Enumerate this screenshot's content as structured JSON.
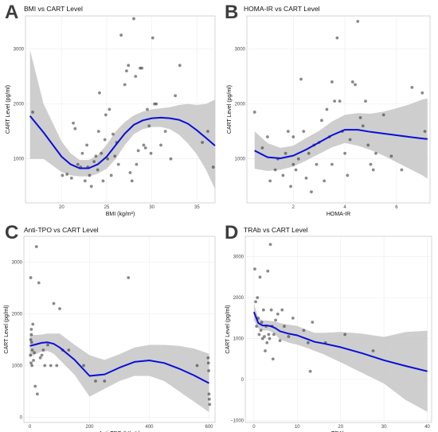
{
  "colors": {
    "line": "#0a0fd8",
    "ribbon": "#c6c6c6",
    "point": "#2a2a2a",
    "grid": "#ececec",
    "panel_border": "#b8b8b8"
  },
  "chart_data": [
    {
      "type": "scatter",
      "letter": "A",
      "title": "BMI vs CART Level",
      "xlabel": "BMI (kg/m²)",
      "ylabel": "CART Level (pg/ml)",
      "xlim": [
        16,
        37
      ],
      "ylim": [
        200,
        3600
      ],
      "x_ticks": [
        20,
        25,
        30,
        35
      ],
      "x_tick_labels": [
        "20",
        "25",
        "30",
        "35"
      ],
      "y_ticks": [
        1000,
        2000,
        3000
      ],
      "y_tick_labels": [
        "1000",
        "2000",
        "3000"
      ],
      "grid": true,
      "points": [
        [
          16.8,
          1850
        ],
        [
          20.1,
          700
        ],
        [
          20.6,
          720
        ],
        [
          21.1,
          650
        ],
        [
          21.3,
          1650
        ],
        [
          21.5,
          1550
        ],
        [
          21.8,
          900
        ],
        [
          22.1,
          850
        ],
        [
          22.3,
          1100
        ],
        [
          22.6,
          600
        ],
        [
          22.8,
          1250
        ],
        [
          22.9,
          850
        ],
        [
          23.1,
          700
        ],
        [
          23.3,
          500
        ],
        [
          23.6,
          950
        ],
        [
          23.8,
          1050
        ],
        [
          24.0,
          800
        ],
        [
          24.1,
          1500
        ],
        [
          24.2,
          2200
        ],
        [
          24.4,
          1100
        ],
        [
          24.6,
          600
        ],
        [
          24.8,
          1350
        ],
        [
          24.9,
          1800
        ],
        [
          25.1,
          1000
        ],
        [
          25.3,
          1900
        ],
        [
          25.5,
          700
        ],
        [
          25.7,
          1450
        ],
        [
          25.9,
          1050
        ],
        [
          26.1,
          1300
        ],
        [
          26.3,
          900
        ],
        [
          26.6,
          3250
        ],
        [
          27.0,
          2350
        ],
        [
          27.2,
          2600
        ],
        [
          27.4,
          2700
        ],
        [
          27.6,
          750
        ],
        [
          27.8,
          600
        ],
        [
          28.0,
          3550
        ],
        [
          28.2,
          2500
        ],
        [
          28.3,
          900
        ],
        [
          28.5,
          1150
        ],
        [
          28.7,
          2650
        ],
        [
          28.9,
          2650
        ],
        [
          29.1,
          1250
        ],
        [
          29.3,
          1200
        ],
        [
          29.5,
          1900
        ],
        [
          29.7,
          1600
        ],
        [
          29.9,
          1100
        ],
        [
          30.1,
          3200
        ],
        [
          30.3,
          2000
        ],
        [
          30.5,
          2000
        ],
        [
          31.0,
          1250
        ],
        [
          31.5,
          1500
        ],
        [
          32.1,
          1000
        ],
        [
          32.6,
          2150
        ],
        [
          33.1,
          2700
        ],
        [
          35.6,
          1300
        ],
        [
          36.2,
          1500
        ],
        [
          36.8,
          850
        ]
      ],
      "fit_x": [
        16.5,
        18,
        20,
        21,
        22,
        23,
        24,
        25,
        26,
        27,
        28,
        29,
        30,
        31,
        32,
        33,
        34,
        35,
        36,
        37
      ],
      "fit_y": [
        1780,
        1480,
        1040,
        900,
        830,
        830,
        900,
        1040,
        1250,
        1460,
        1620,
        1700,
        1740,
        1750,
        1740,
        1710,
        1640,
        1520,
        1380,
        1240
      ],
      "ci_low": [
        1000,
        1000,
        760,
        700,
        680,
        680,
        730,
        820,
        1000,
        1250,
        1450,
        1540,
        1580,
        1580,
        1540,
        1440,
        1280,
        1080,
        800,
        450
      ],
      "ci_high": [
        2980,
        2000,
        1320,
        1100,
        980,
        980,
        1070,
        1260,
        1500,
        1670,
        1790,
        1860,
        1900,
        1920,
        1940,
        1980,
        2000,
        1980,
        2000,
        2080
      ]
    },
    {
      "type": "scatter",
      "letter": "B",
      "title": "HOMA-IR vs CART Level",
      "xlabel": "HOMA-IR",
      "ylabel": "CART Level (pg/ml)",
      "xlim": [
        0.2,
        7.3
      ],
      "ylim": [
        200,
        3600
      ],
      "x_ticks": [
        2,
        4,
        6
      ],
      "x_tick_labels": [
        "2",
        "4",
        "6"
      ],
      "y_ticks": [
        1000,
        2000,
        3000
      ],
      "y_tick_labels": [
        "1000",
        "2000",
        "3000"
      ],
      "grid": true,
      "points": [
        [
          0.5,
          1850
        ],
        [
          0.8,
          1200
        ],
        [
          1.0,
          1400
        ],
        [
          1.1,
          600
        ],
        [
          1.3,
          800
        ],
        [
          1.4,
          1000
        ],
        [
          1.6,
          700
        ],
        [
          1.7,
          1100
        ],
        [
          1.8,
          1500
        ],
        [
          1.9,
          500
        ],
        [
          2.0,
          900
        ],
        [
          2.0,
          1400
        ],
        [
          2.1,
          800
        ],
        [
          2.2,
          1000
        ],
        [
          2.3,
          2450
        ],
        [
          2.4,
          1500
        ],
        [
          2.5,
          650
        ],
        [
          2.6,
          1100
        ],
        [
          2.7,
          400
        ],
        [
          2.8,
          1250
        ],
        [
          2.9,
          900
        ],
        [
          3.0,
          1300
        ],
        [
          3.1,
          1700
        ],
        [
          3.2,
          600
        ],
        [
          3.3,
          1900
        ],
        [
          3.4,
          1400
        ],
        [
          3.5,
          2400
        ],
        [
          3.5,
          900
        ],
        [
          3.6,
          2050
        ],
        [
          3.7,
          3200
        ],
        [
          3.8,
          2050
        ],
        [
          3.9,
          1500
        ],
        [
          4.0,
          1100
        ],
        [
          4.1,
          700
        ],
        [
          4.2,
          1350
        ],
        [
          4.3,
          2400
        ],
        [
          4.4,
          2350
        ],
        [
          4.5,
          3500
        ],
        [
          4.6,
          1750
        ],
        [
          4.7,
          1600
        ],
        [
          4.8,
          2050
        ],
        [
          4.9,
          1250
        ],
        [
          5.0,
          900
        ],
        [
          5.1,
          800
        ],
        [
          5.2,
          1100
        ],
        [
          5.5,
          1800
        ],
        [
          5.8,
          1050
        ],
        [
          6.2,
          800
        ],
        [
          6.6,
          2300
        ],
        [
          7.0,
          2200
        ],
        [
          7.1,
          1500
        ]
      ],
      "fit_x": [
        0.5,
        1,
        1.5,
        2,
        2.5,
        3,
        3.5,
        4,
        4.5,
        5,
        5.5,
        6,
        6.5,
        7,
        7.2
      ],
      "fit_y": [
        1150,
        1030,
        1010,
        1060,
        1170,
        1300,
        1430,
        1530,
        1530,
        1490,
        1460,
        1430,
        1400,
        1370,
        1360
      ],
      "ci_low": [
        820,
        780,
        800,
        860,
        970,
        1090,
        1210,
        1290,
        1240,
        1160,
        1060,
        940,
        820,
        700,
        640
      ],
      "ci_high": [
        1500,
        1290,
        1200,
        1240,
        1380,
        1510,
        1680,
        1800,
        1830,
        1820,
        1860,
        1920,
        1990,
        2080,
        2100
      ]
    },
    {
      "type": "scatter",
      "letter": "C",
      "title": "Anti-TPO vs CART Level",
      "xlabel": "Anti-TPO (U/mL)",
      "ylabel": "CART Level (pg/ml)",
      "xlim": [
        -20,
        620
      ],
      "ylim": [
        -100,
        3500
      ],
      "x_ticks": [
        0,
        200,
        400,
        600
      ],
      "x_tick_labels": [
        "0",
        "200",
        "400",
        "600"
      ],
      "y_ticks": [
        0,
        1000,
        2000,
        3000
      ],
      "y_tick_labels": [
        "0",
        "1000",
        "2000",
        "3000"
      ],
      "grid": true,
      "points": [
        [
          2,
          1200
        ],
        [
          3,
          1500
        ],
        [
          3,
          2700
        ],
        [
          4,
          1050
        ],
        [
          5,
          1600
        ],
        [
          5,
          1700
        ],
        [
          6,
          1450
        ],
        [
          7,
          1000
        ],
        [
          8,
          1300
        ],
        [
          10,
          1800
        ],
        [
          12,
          1100
        ],
        [
          15,
          1250
        ],
        [
          18,
          600
        ],
        [
          22,
          3300
        ],
        [
          25,
          450
        ],
        [
          30,
          2600
        ],
        [
          35,
          1150
        ],
        [
          40,
          1200
        ],
        [
          45,
          1300
        ],
        [
          50,
          1000
        ],
        [
          60,
          1400
        ],
        [
          70,
          1000
        ],
        [
          80,
          2200
        ],
        [
          90,
          1000
        ],
        [
          100,
          2100
        ],
        [
          110,
          1300
        ],
        [
          130,
          1300
        ],
        [
          180,
          1000
        ],
        [
          220,
          700
        ],
        [
          250,
          700
        ],
        [
          330,
          2700
        ],
        [
          560,
          1000
        ],
        [
          597,
          1150
        ],
        [
          598,
          1050
        ],
        [
          599,
          900
        ],
        [
          600,
          450
        ],
        [
          601,
          350
        ],
        [
          602,
          250
        ]
      ],
      "fit_x": [
        0,
        20,
        40,
        60,
        80,
        100,
        150,
        200,
        250,
        300,
        350,
        400,
        450,
        500,
        550,
        600
      ],
      "fit_y": [
        1380,
        1410,
        1440,
        1450,
        1420,
        1350,
        1110,
        800,
        830,
        960,
        1070,
        1100,
        1050,
        940,
        810,
        660
      ],
      "ci_low": [
        1170,
        1220,
        1270,
        1280,
        1230,
        1110,
        820,
        400,
        550,
        700,
        800,
        800,
        700,
        500,
        300,
        100
      ],
      "ci_high": [
        1600,
        1590,
        1600,
        1620,
        1620,
        1620,
        1400,
        1200,
        1110,
        1220,
        1350,
        1400,
        1400,
        1380,
        1330,
        1230
      ]
    },
    {
      "type": "scatter",
      "letter": "D",
      "title": "TRAb vs CART Level",
      "xlabel": "TRAb",
      "ylabel": "CART Level (pg/ml)",
      "xlim": [
        -2,
        41
      ],
      "ylim": [
        -1050,
        3500
      ],
      "x_ticks": [
        0,
        10,
        20,
        30,
        40
      ],
      "x_tick_labels": [
        "0",
        "10",
        "20",
        "30",
        "40"
      ],
      "y_ticks": [
        -1000,
        0,
        1000,
        2000,
        3000
      ],
      "y_tick_labels": [
        "−1000",
        "0",
        "1000",
        "2000",
        "3000"
      ],
      "grid": true,
      "points": [
        [
          0.2,
          2700
        ],
        [
          0.4,
          1900
        ],
        [
          0.6,
          1300
        ],
        [
          0.8,
          2000
        ],
        [
          1.0,
          1500
        ],
        [
          1.2,
          1100
        ],
        [
          1.4,
          2500
        ],
        [
          1.6,
          1200
        ],
        [
          1.8,
          1400
        ],
        [
          2.0,
          1000
        ],
        [
          2.2,
          1700
        ],
        [
          2.4,
          1050
        ],
        [
          2.6,
          700
        ],
        [
          2.8,
          1300
        ],
        [
          3.0,
          900
        ],
        [
          3.2,
          2650
        ],
        [
          3.4,
          1100
        ],
        [
          3.6,
          1000
        ],
        [
          3.8,
          3300
        ],
        [
          4.0,
          1700
        ],
        [
          4.2,
          1300
        ],
        [
          4.4,
          500
        ],
        [
          4.6,
          1100
        ],
        [
          5.0,
          1450
        ],
        [
          5.5,
          1600
        ],
        [
          6.0,
          950
        ],
        [
          6.5,
          1700
        ],
        [
          7.0,
          1300
        ],
        [
          8.0,
          1050
        ],
        [
          9.0,
          1500
        ],
        [
          11.5,
          1200
        ],
        [
          12.5,
          900
        ],
        [
          13.0,
          200
        ],
        [
          13.5,
          1400
        ],
        [
          16.5,
          900
        ],
        [
          21.0,
          1100
        ],
        [
          27.5,
          700
        ]
      ],
      "fit_x": [
        0,
        1,
        2,
        3,
        4,
        5,
        6,
        8,
        10,
        12,
        14,
        16,
        20,
        25,
        30,
        35,
        40
      ],
      "fit_y": [
        1650,
        1380,
        1320,
        1320,
        1300,
        1250,
        1180,
        1120,
        1080,
        1000,
        920,
        880,
        790,
        640,
        470,
        330,
        200
      ],
      "ci_low": [
        1450,
        1250,
        1200,
        1200,
        1170,
        1090,
        980,
        900,
        850,
        780,
        700,
        620,
        420,
        160,
        -100,
        -500,
        -790
      ],
      "ci_high": [
        1850,
        1510,
        1440,
        1440,
        1430,
        1410,
        1380,
        1340,
        1310,
        1220,
        1140,
        1140,
        1160,
        1120,
        1040,
        1160,
        1190
      ]
    }
  ]
}
